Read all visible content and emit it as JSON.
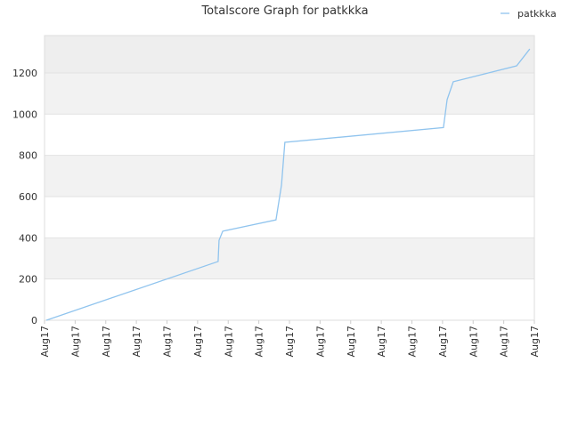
{
  "chart_data": {
    "type": "line",
    "title": "Totalscore Graph for patkkka",
    "x": [
      0.06,
      5.67,
      5.7,
      5.82,
      7.56,
      7.74,
      7.85,
      13.03,
      13.15,
      13.35,
      15.42,
      15.85
    ],
    "series": [
      {
        "name": "patkkka",
        "color": "#90c4ee",
        "values": [
          0,
          285,
          388,
          432,
          487,
          656,
          863,
          935,
          1070,
          1157,
          1234,
          1316
        ]
      }
    ],
    "xlim": [
      0,
      16
    ],
    "xticks": [
      {
        "value": 0,
        "label": "Aug17"
      },
      {
        "value": 1,
        "label": "Aug17"
      },
      {
        "value": 2,
        "label": "Aug17"
      },
      {
        "value": 3,
        "label": "Aug17"
      },
      {
        "value": 4,
        "label": "Aug17"
      },
      {
        "value": 5,
        "label": "Aug17"
      },
      {
        "value": 6,
        "label": "Aug17"
      },
      {
        "value": 7,
        "label": "Aug17"
      },
      {
        "value": 8,
        "label": "Aug17"
      },
      {
        "value": 9,
        "label": "Aug17"
      },
      {
        "value": 10,
        "label": "Aug17"
      },
      {
        "value": 11,
        "label": "Aug17"
      },
      {
        "value": 12,
        "label": "Aug17"
      },
      {
        "value": 13,
        "label": "Aug17"
      },
      {
        "value": 14,
        "label": "Aug17"
      },
      {
        "value": 15,
        "label": "Aug17"
      },
      {
        "value": 16,
        "label": "Aug17"
      }
    ],
    "ylim": [
      0,
      1381
    ],
    "yticks": [
      0,
      200,
      400,
      600,
      800,
      1000,
      1200
    ],
    "grid": true,
    "legend": "top-right"
  }
}
